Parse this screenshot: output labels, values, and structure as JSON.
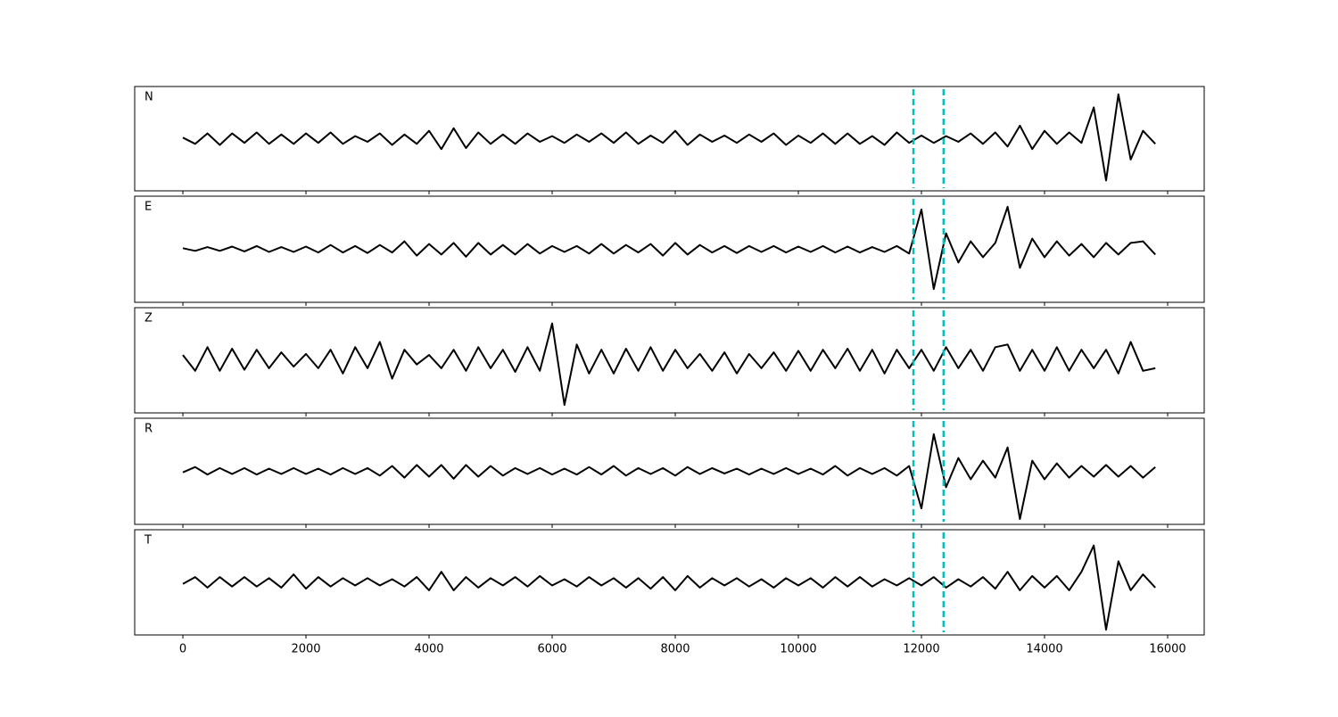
{
  "chart_data": {
    "type": "line",
    "x": [
      0,
      200,
      400,
      600,
      800,
      1000,
      1200,
      1400,
      1600,
      1800,
      2000,
      2200,
      2400,
      2600,
      2800,
      3000,
      3200,
      3400,
      3600,
      3800,
      4000,
      4200,
      4400,
      4600,
      4800,
      5000,
      5200,
      5400,
      5600,
      5800,
      6000,
      6200,
      6400,
      6600,
      6800,
      7000,
      7200,
      7400,
      7600,
      7800,
      8000,
      8200,
      8400,
      8600,
      8800,
      9000,
      9200,
      9400,
      9600,
      9800,
      10000,
      10200,
      10400,
      10600,
      10800,
      11000,
      11200,
      11400,
      11600,
      11800,
      12000,
      12200,
      12400,
      12600,
      12800,
      13000,
      13200,
      13400,
      13600,
      13800,
      14000,
      14200,
      14400,
      14600,
      14800,
      15000,
      15200,
      15400,
      15600,
      15800
    ],
    "series": [
      {
        "name": "N",
        "color": "#000000",
        "values": [
          0.02,
          -0.1,
          0.1,
          -0.12,
          0.1,
          -0.08,
          0.12,
          -0.1,
          0.08,
          -0.1,
          0.1,
          -0.08,
          0.12,
          -0.1,
          0.05,
          -0.06,
          0.1,
          -0.12,
          0.08,
          -0.1,
          0.15,
          -0.2,
          0.2,
          -0.18,
          0.12,
          -0.1,
          0.08,
          -0.1,
          0.1,
          -0.06,
          0.05,
          -0.08,
          0.08,
          -0.06,
          0.1,
          -0.08,
          0.12,
          -0.1,
          0.06,
          -0.08,
          0.15,
          -0.12,
          0.08,
          -0.06,
          0.06,
          -0.08,
          0.08,
          -0.06,
          0.1,
          -0.12,
          0.06,
          -0.08,
          0.1,
          -0.1,
          0.1,
          -0.1,
          0.05,
          -0.12,
          0.12,
          -0.08,
          0.06,
          -0.08,
          0.05,
          -0.06,
          0.1,
          -0.1,
          0.12,
          -0.15,
          0.25,
          -0.2,
          0.15,
          -0.1,
          0.12,
          -0.08,
          0.6,
          -0.8,
          0.85,
          -0.4,
          0.15,
          -0.1
        ]
      },
      {
        "name": "E",
        "color": "#000000",
        "values": [
          0.02,
          -0.03,
          0.04,
          -0.03,
          0.05,
          -0.04,
          0.06,
          -0.05,
          0.04,
          -0.05,
          0.05,
          -0.06,
          0.08,
          -0.06,
          0.06,
          -0.07,
          0.08,
          -0.06,
          0.15,
          -0.12,
          0.1,
          -0.1,
          0.12,
          -0.14,
          0.12,
          -0.1,
          0.08,
          -0.1,
          0.1,
          -0.08,
          0.06,
          -0.05,
          0.06,
          -0.08,
          0.1,
          -0.08,
          0.08,
          -0.06,
          0.1,
          -0.12,
          0.12,
          -0.1,
          0.08,
          -0.06,
          0.06,
          -0.07,
          0.06,
          -0.05,
          0.06,
          -0.06,
          0.05,
          -0.05,
          0.06,
          -0.06,
          0.05,
          -0.06,
          0.04,
          -0.05,
          0.06,
          -0.08,
          0.75,
          -0.75,
          0.3,
          -0.25,
          0.15,
          -0.15,
          0.12,
          0.8,
          -0.35,
          0.2,
          -0.15,
          0.15,
          -0.12,
          0.1,
          -0.15,
          0.12,
          -0.1,
          0.12,
          0.15,
          -0.1
        ]
      },
      {
        "name": "Z",
        "color": "#000000",
        "values": [
          0.1,
          -0.2,
          0.25,
          -0.2,
          0.22,
          -0.18,
          0.2,
          -0.15,
          0.15,
          -0.12,
          0.12,
          -0.15,
          0.2,
          -0.25,
          0.25,
          -0.15,
          0.35,
          -0.35,
          0.2,
          -0.08,
          0.1,
          -0.15,
          0.2,
          -0.2,
          0.25,
          -0.15,
          0.2,
          -0.22,
          0.25,
          -0.2,
          0.7,
          -0.85,
          0.3,
          -0.25,
          0.2,
          -0.25,
          0.22,
          -0.2,
          0.25,
          -0.2,
          0.2,
          -0.15,
          0.12,
          -0.2,
          0.15,
          -0.25,
          0.12,
          -0.15,
          0.15,
          -0.2,
          0.18,
          -0.2,
          0.2,
          -0.15,
          0.22,
          -0.2,
          0.2,
          -0.25,
          0.2,
          -0.15,
          0.2,
          -0.2,
          0.25,
          -0.15,
          0.2,
          -0.2,
          0.25,
          0.3,
          -0.2,
          0.2,
          -0.2,
          0.25,
          -0.2,
          0.2,
          -0.15,
          0.2,
          -0.25,
          0.35,
          -0.2,
          -0.15
        ]
      },
      {
        "name": "R",
        "color": "#000000",
        "values": [
          -0.02,
          0.08,
          -0.06,
          0.06,
          -0.05,
          0.06,
          -0.06,
          0.05,
          -0.05,
          0.06,
          -0.05,
          0.05,
          -0.06,
          0.06,
          -0.05,
          0.06,
          -0.08,
          0.1,
          -0.12,
          0.12,
          -0.1,
          0.12,
          -0.14,
          0.12,
          -0.1,
          0.1,
          -0.08,
          0.06,
          -0.05,
          0.06,
          -0.06,
          0.05,
          -0.06,
          0.08,
          -0.06,
          0.1,
          -0.08,
          0.06,
          -0.05,
          0.06,
          -0.08,
          0.08,
          -0.05,
          0.06,
          -0.04,
          0.05,
          -0.06,
          0.05,
          -0.05,
          0.06,
          -0.05,
          0.05,
          -0.06,
          0.1,
          -0.08,
          0.06,
          -0.05,
          0.06,
          -0.08,
          0.1,
          -0.7,
          0.7,
          -0.3,
          0.25,
          -0.15,
          0.2,
          -0.12,
          0.45,
          -0.9,
          0.2,
          -0.15,
          0.15,
          -0.12,
          0.1,
          -0.1,
          0.12,
          -0.1,
          0.1,
          -0.12,
          0.08
        ]
      },
      {
        "name": "T",
        "color": "#000000",
        "values": [
          -0.03,
          0.1,
          -0.1,
          0.1,
          -0.08,
          0.1,
          -0.08,
          0.08,
          -0.1,
          0.15,
          -0.12,
          0.1,
          -0.08,
          0.08,
          -0.06,
          0.08,
          -0.06,
          0.06,
          -0.08,
          0.1,
          -0.15,
          0.2,
          -0.15,
          0.1,
          -0.1,
          0.08,
          -0.06,
          0.1,
          -0.08,
          0.12,
          -0.06,
          0.06,
          -0.08,
          0.1,
          -0.06,
          0.08,
          -0.1,
          0.08,
          -0.12,
          0.1,
          -0.15,
          0.12,
          -0.1,
          0.08,
          -0.06,
          0.08,
          -0.08,
          0.06,
          -0.1,
          0.08,
          -0.06,
          0.08,
          -0.1,
          0.1,
          -0.08,
          0.1,
          -0.08,
          0.06,
          -0.06,
          0.08,
          -0.06,
          0.1,
          -0.1,
          0.06,
          -0.08,
          0.1,
          -0.12,
          0.2,
          -0.15,
          0.12,
          -0.1,
          0.12,
          -0.15,
          0.2,
          0.7,
          -0.9,
          0.4,
          -0.15,
          0.15,
          -0.1
        ]
      }
    ],
    "xlim": [
      -783,
      16594
    ],
    "xticks": [
      0,
      2000,
      4000,
      6000,
      8000,
      10000,
      12000,
      14000,
      16000
    ],
    "ylim": [
      -1,
      1
    ],
    "vlines": {
      "x": [
        11870,
        12360
      ],
      "color": "#00bfbf"
    }
  }
}
